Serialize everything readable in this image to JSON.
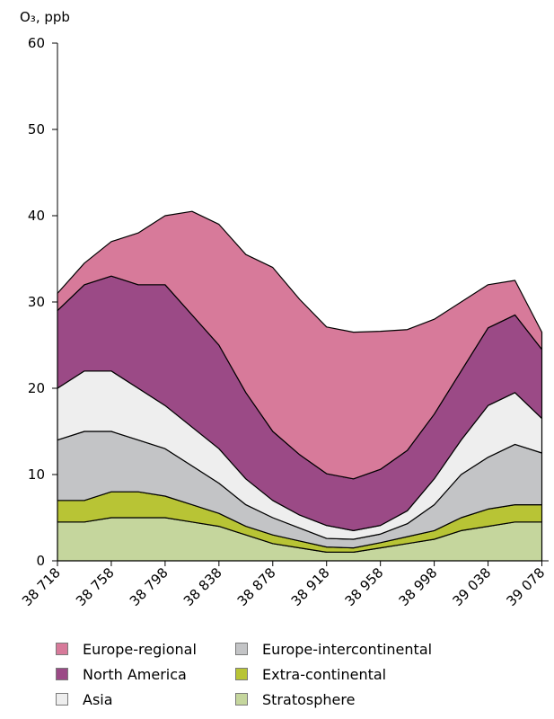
{
  "chart_data": {
    "type": "area",
    "stacked": true,
    "ylabel": "O₃, ppb",
    "ylim": [
      0,
      60
    ],
    "xlim": [
      38718,
      39083
    ],
    "yticks": [
      0,
      10,
      20,
      30,
      40,
      50,
      60
    ],
    "xticks": [
      "38 718",
      "38 758",
      "38 798",
      "38 838",
      "38 878",
      "38 918",
      "38 958",
      "38 998",
      "39 038",
      "39 078"
    ],
    "xtick_values": [
      38718,
      38758,
      38798,
      38838,
      38878,
      38918,
      38958,
      38998,
      39038,
      39078
    ],
    "x": [
      38718,
      38738,
      38758,
      38778,
      38798,
      38818,
      38838,
      38858,
      38878,
      38898,
      38918,
      38938,
      38958,
      38978,
      38998,
      39018,
      39038,
      39058,
      39078
    ],
    "series": [
      {
        "name": "Stratosphere",
        "color": "#c5d69d",
        "values": [
          4.5,
          4.5,
          5.0,
          5.0,
          5.0,
          4.5,
          4.0,
          3.0,
          2.0,
          1.5,
          1.0,
          1.0,
          1.5,
          2.0,
          2.5,
          3.5,
          4.0,
          4.5,
          4.5
        ]
      },
      {
        "name": "Extra-continental",
        "color": "#b8c435",
        "values": [
          2.5,
          2.5,
          3.0,
          3.0,
          2.5,
          2.0,
          1.5,
          1.0,
          1.0,
          0.8,
          0.6,
          0.5,
          0.6,
          0.8,
          1.0,
          1.5,
          2.0,
          2.0,
          2.0
        ]
      },
      {
        "name": "Europe-intercontinental",
        "color": "#c3c4c6",
        "values": [
          7.0,
          8.0,
          7.0,
          6.0,
          5.5,
          4.5,
          3.5,
          2.5,
          2.0,
          1.5,
          1.0,
          1.0,
          1.0,
          1.5,
          3.0,
          5.0,
          6.0,
          7.0,
          6.0
        ]
      },
      {
        "name": "Asia",
        "color": "#eeeeee",
        "values": [
          6.0,
          7.0,
          7.0,
          6.0,
          5.0,
          4.5,
          4.0,
          3.0,
          2.0,
          1.5,
          1.5,
          1.0,
          1.0,
          1.5,
          3.0,
          4.0,
          6.0,
          6.0,
          4.0
        ]
      },
      {
        "name": "North America",
        "color": "#9b4a86",
        "values": [
          9.0,
          10.0,
          11.0,
          12.0,
          14.0,
          13.0,
          12.0,
          10.0,
          8.0,
          7.0,
          6.0,
          6.0,
          6.5,
          7.0,
          7.5,
          8.0,
          9.0,
          9.0,
          8.0
        ]
      },
      {
        "name": "Europe-regional",
        "color": "#d77a9a",
        "values": [
          2.0,
          2.5,
          4.0,
          6.0,
          8.0,
          12.0,
          14.0,
          16.0,
          19.0,
          18.0,
          17.0,
          17.0,
          16.0,
          14.0,
          11.0,
          8.0,
          5.0,
          4.0,
          2.0
        ]
      }
    ],
    "legend_placement": "bottom",
    "grid": false
  },
  "legend": [
    {
      "label": "Europe-regional",
      "color": "#d77a9a"
    },
    {
      "label": "Europe-intercontinental",
      "color": "#c3c4c6"
    },
    {
      "label": "North America",
      "color": "#9b4a86"
    },
    {
      "label": "Extra-continental",
      "color": "#b8c435"
    },
    {
      "label": "Asia",
      "color": "#eeeeee"
    },
    {
      "label": "Stratosphere",
      "color": "#c5d69d"
    }
  ]
}
